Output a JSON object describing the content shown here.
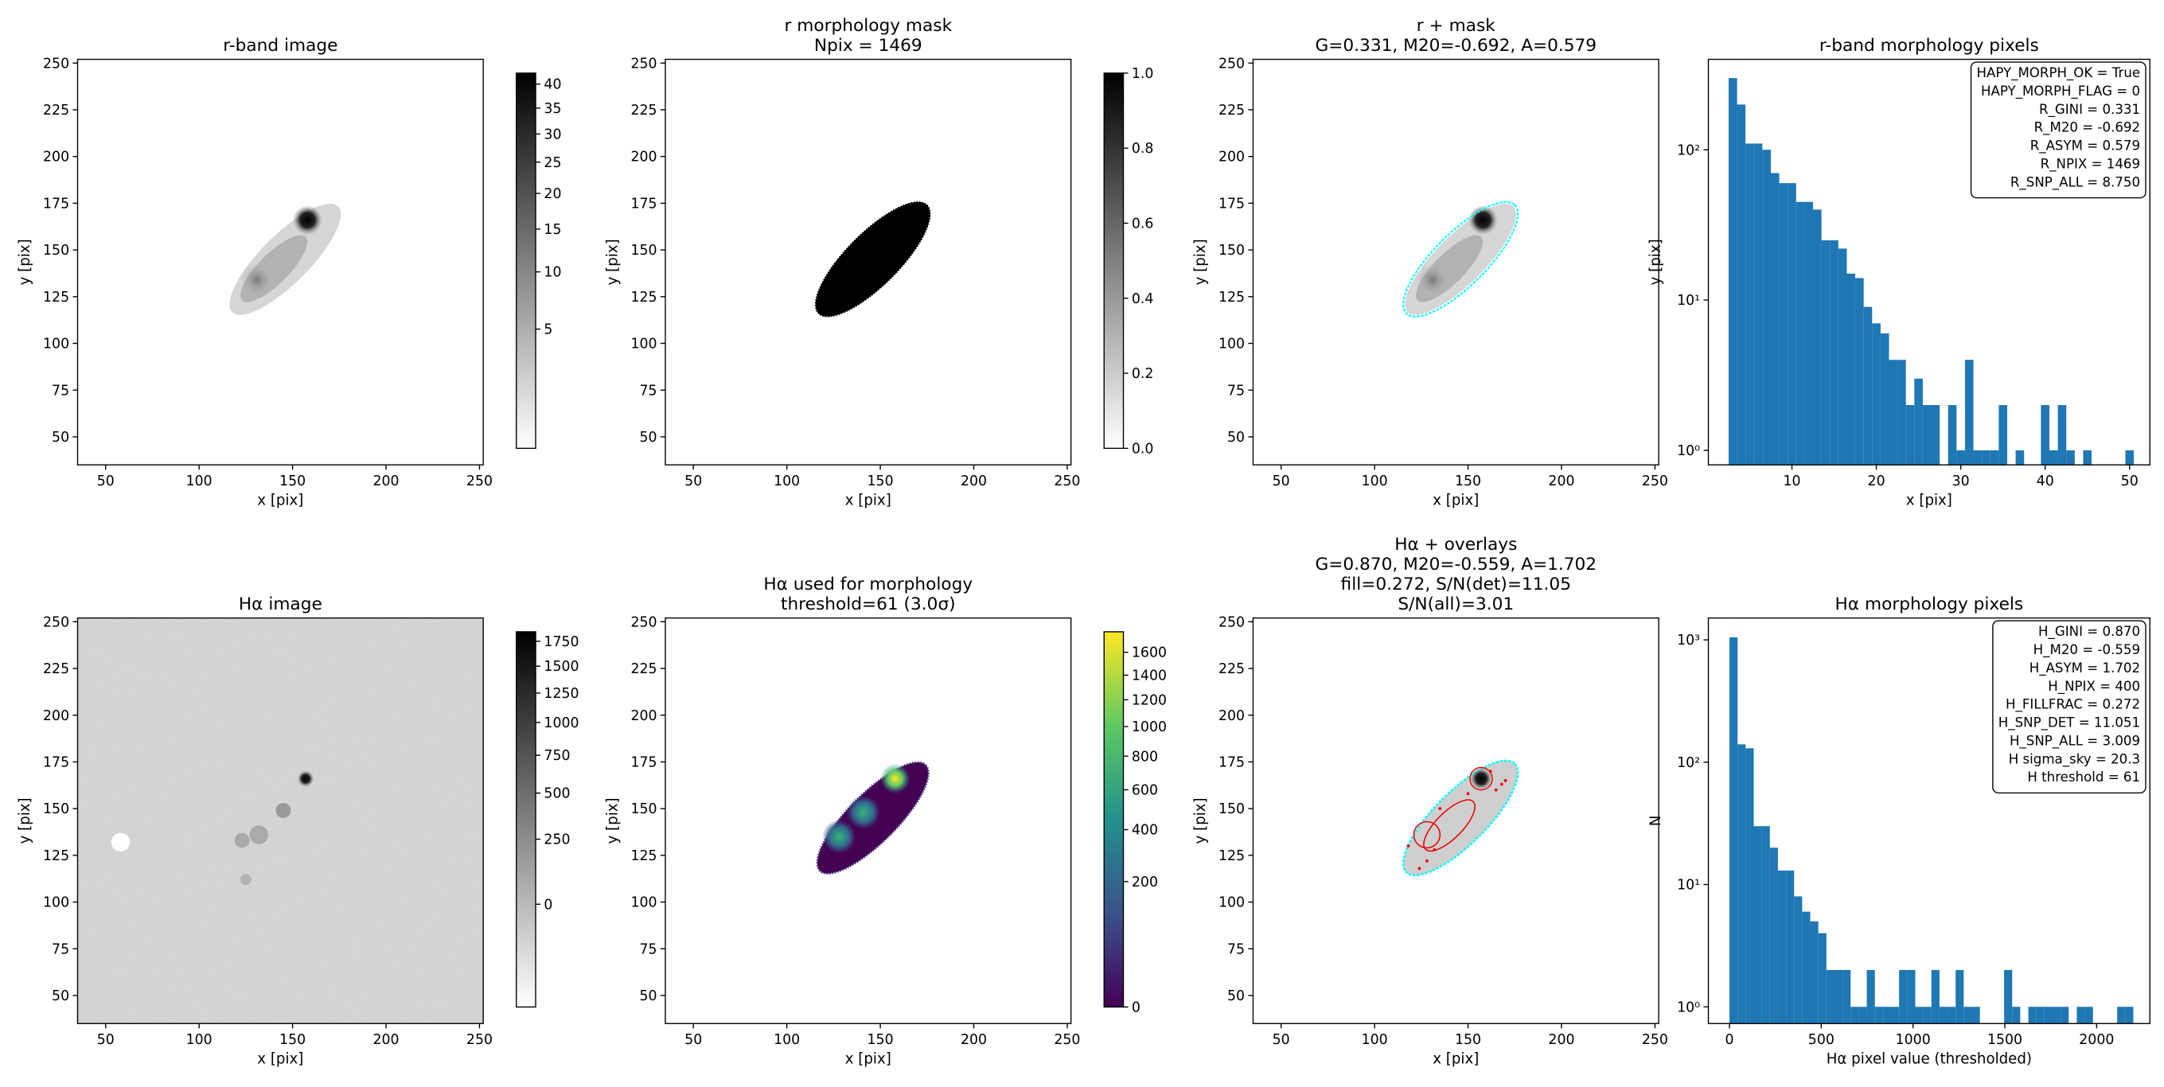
{
  "chart_data": [
    {
      "type": "image",
      "title": [
        "r-band image"
      ],
      "xlabel": "x [pix]",
      "ylabel": "y [pix]",
      "xlim": [
        35,
        252
      ],
      "ylim": [
        35,
        252
      ],
      "xticks": [
        50,
        100,
        150,
        200,
        250
      ],
      "yticks": [
        50,
        75,
        100,
        125,
        150,
        175,
        200,
        225,
        250
      ],
      "colorbar": {
        "lim": [
          0.8,
          42.4
        ],
        "scale": "sqrt",
        "cmap": "gray_r",
        "ticks": [
          5,
          10,
          15,
          20,
          25,
          30,
          35,
          40
        ]
      }
    },
    {
      "type": "image",
      "title": [
        "r morphology mask",
        "Npix = 1469"
      ],
      "xlabel": "x [pix]",
      "ylabel": "y [pix]",
      "xlim": [
        35,
        252
      ],
      "ylim": [
        35,
        252
      ],
      "xticks": [
        50,
        100,
        150,
        200,
        250
      ],
      "yticks": [
        50,
        75,
        100,
        125,
        150,
        175,
        200,
        225,
        250
      ],
      "colorbar": {
        "lim": [
          0,
          1
        ],
        "scale": "linear",
        "cmap": "gray_r",
        "ticks": [
          {
            "value": 0,
            "label": "0.0"
          },
          0.2,
          0.4,
          0.6,
          0.8,
          {
            "value": 1,
            "label": "1.0"
          }
        ]
      }
    },
    {
      "type": "image",
      "title": [
        "r + mask",
        "G=0.331, M20=-0.692, A=0.579"
      ],
      "xlabel": "x [pix]",
      "ylabel": "y [pix]",
      "xlim": [
        35,
        252
      ],
      "ylim": [
        35,
        252
      ],
      "xticks": [
        50,
        100,
        150,
        200,
        250
      ],
      "yticks": [
        50,
        75,
        100,
        125,
        150,
        175,
        200,
        225,
        250
      ]
    },
    {
      "type": "histogram",
      "title": [
        "r-band morphology pixels"
      ],
      "xlabel": "x [pix]",
      "ylabel": "y [pix]",
      "color": "#1f77b4",
      "log_y": true,
      "bins": [
        2.5,
        3.5,
        4.5,
        5.5,
        6.5,
        7.5,
        8.5,
        9.5,
        10.5,
        11.5,
        12.5,
        13.5,
        14.5,
        15.5,
        16.5,
        17.5,
        18.5,
        19.5,
        20.5,
        21.5,
        22.5,
        23.5,
        24.5,
        25.5,
        26.5,
        27.5,
        28.5,
        29.5,
        30.5,
        31.5,
        32.5,
        33.5,
        34.5,
        35.5,
        36.5,
        37.5,
        38.5,
        39.5,
        40.5,
        41.5,
        42.5,
        43.5,
        44.5,
        45.5,
        46.5,
        47.5,
        48.5,
        49.5,
        50.5
      ],
      "counts": [
        300,
        200,
        110,
        110,
        100,
        70,
        60,
        60,
        45,
        45,
        40,
        25,
        25,
        22,
        15,
        14,
        9,
        7,
        6,
        4,
        4,
        2,
        3,
        2,
        2,
        0,
        2,
        1,
        4,
        1,
        1,
        1,
        2,
        0,
        1,
        0,
        0,
        2,
        1,
        2,
        1,
        0,
        1,
        0,
        0,
        0,
        0,
        1
      ],
      "xlim": [
        0.1,
        52.4
      ],
      "ylim": [
        0.8,
        400
      ],
      "xticks": [
        10,
        20,
        30,
        40,
        50
      ],
      "yticks": [
        {
          "value": 1,
          "label": "10⁰"
        },
        {
          "value": 10,
          "label": "10¹"
        },
        {
          "value": 100,
          "label": "10²"
        }
      ],
      "annotation_corner": "upper right",
      "annotations": [
        "HAPY_MORPH_OK = True",
        "HAPY_MORPH_FLAG = 0",
        "R_GINI = 0.331",
        "R_M20 = -0.692",
        "R_ASYM = 0.579",
        "R_NPIX = 1469",
        "R_SNP_ALL = 8.750"
      ]
    },
    {
      "type": "image",
      "title": [
        "Hα image"
      ],
      "xlabel": "x [pix]",
      "ylabel": "y [pix]",
      "xlim": [
        35,
        252
      ],
      "ylim": [
        35,
        252
      ],
      "xticks": [
        50,
        100,
        150,
        200,
        250
      ],
      "yticks": [
        50,
        75,
        100,
        125,
        150,
        175,
        200,
        225,
        250
      ],
      "colorbar": {
        "lim": [
          -150,
          1850
        ],
        "scale": "sqrt",
        "cmap": "gray_r",
        "ticks": [
          0,
          250,
          500,
          750,
          1000,
          1250,
          1500,
          1750
        ]
      }
    },
    {
      "type": "image",
      "title": [
        "Hα used for morphology",
        "threshold=61 (3.0σ)"
      ],
      "xlabel": "x [pix]",
      "ylabel": "y [pix]",
      "xlim": [
        35,
        252
      ],
      "ylim": [
        35,
        252
      ],
      "xticks": [
        50,
        100,
        150,
        200,
        250
      ],
      "yticks": [
        50,
        75,
        100,
        125,
        150,
        175,
        200,
        225,
        250
      ],
      "colorbar": {
        "lim": [
          0,
          1790
        ],
        "scale": "sqrt",
        "cmap": "viridis",
        "ticks": [
          0,
          200,
          400,
          600,
          800,
          1000,
          1200,
          1400,
          1600
        ]
      }
    },
    {
      "type": "image",
      "title": [
        "Hα + overlays",
        "G=0.870, M20=-0.559, A=1.702",
        "fill=0.272, S/N(det)=11.05",
        "S/N(all)=3.01"
      ],
      "xlabel": "x [pix]",
      "ylabel": "y [pix]",
      "xlim": [
        35,
        252
      ],
      "ylim": [
        35,
        252
      ],
      "xticks": [
        50,
        100,
        150,
        200,
        250
      ],
      "yticks": [
        50,
        75,
        100,
        125,
        150,
        175,
        200,
        225,
        250
      ]
    },
    {
      "type": "histogram",
      "title": [
        "Hα morphology pixels"
      ],
      "xlabel": "Hα pixel value (thresholded)",
      "ylabel": "N",
      "color": "#1f77b4",
      "log_y": true,
      "bins": [
        0,
        44,
        88,
        132,
        176,
        220,
        264,
        308,
        352,
        396,
        440,
        484,
        528,
        572,
        616,
        660,
        704,
        748,
        792,
        836,
        880,
        924,
        968,
        1012,
        1056,
        1100,
        1144,
        1188,
        1232,
        1276,
        1320,
        1364,
        1408,
        1452,
        1496,
        1540,
        1584,
        1628,
        1672,
        1716,
        1760,
        1804,
        1848,
        1892,
        1936,
        1980,
        2024,
        2068,
        2112,
        2156,
        2200
      ],
      "counts": [
        1050,
        140,
        130,
        30,
        30,
        20,
        13,
        13,
        8,
        6,
        5,
        4,
        2,
        2,
        2,
        1,
        1,
        2,
        1,
        1,
        1,
        2,
        2,
        1,
        1,
        2,
        1,
        1,
        2,
        1,
        1,
        0,
        0,
        0,
        2,
        1,
        0,
        1,
        1,
        1,
        1,
        1,
        0,
        1,
        1,
        0,
        0,
        0,
        1,
        1
      ],
      "xlim": [
        -115,
        2290
      ],
      "ylim": [
        0.73,
        1510
      ],
      "xticks": [
        0,
        500,
        1000,
        1500,
        2000
      ],
      "yticks": [
        {
          "value": 1,
          "label": "10⁰"
        },
        {
          "value": 10,
          "label": "10¹"
        },
        {
          "value": 100,
          "label": "10²"
        },
        {
          "value": 1000,
          "label": "10³"
        }
      ],
      "annotation_corner": "upper right",
      "annotations": [
        "H_GINI = 0.870",
        "H_M20 = -0.559",
        "H_ASYM = 1.702",
        "H_NPIX = 400",
        "H_FILLFRAC = 0.272",
        "H_SNP_DET = 11.051",
        "H_SNP_ALL = 3.009",
        "H sigma_sky = 20.3",
        "H threshold = 61"
      ]
    }
  ]
}
